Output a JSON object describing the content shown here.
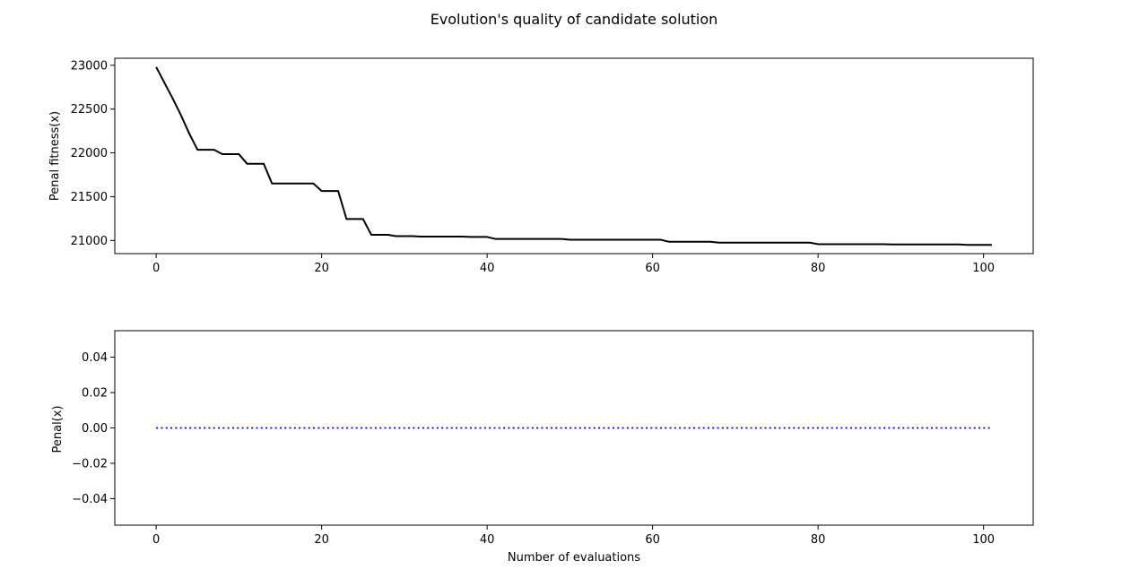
{
  "figure": {
    "title": "Evolution's quality of candidate solution"
  },
  "chart_data": [
    {
      "type": "line",
      "title": "",
      "xlabel": "",
      "ylabel": "Penal fitness(x)",
      "xlim": [
        -5,
        106
      ],
      "ylim": [
        20850,
        23080
      ],
      "xticks": [
        0,
        20,
        40,
        60,
        80,
        100
      ],
      "yticks": [
        21000,
        21500,
        22000,
        22500,
        23000
      ],
      "grid": false,
      "series": [
        {
          "color": "#000000",
          "linestyle": "solid",
          "x": [
            0,
            2,
            3,
            4,
            5,
            7,
            8,
            10,
            11,
            13,
            14,
            19,
            20,
            22,
            23,
            25,
            26,
            28,
            29,
            31,
            32,
            37,
            38,
            40,
            41,
            49,
            50,
            61,
            62,
            67,
            68,
            79,
            80,
            88,
            89,
            97,
            98,
            101
          ],
          "y": [
            22980,
            22620,
            22430,
            22220,
            22035,
            22035,
            21985,
            21985,
            21875,
            21875,
            21650,
            21650,
            21565,
            21565,
            21245,
            21245,
            21065,
            21065,
            21050,
            21050,
            21045,
            21045,
            21040,
            21040,
            21018,
            21018,
            21008,
            21008,
            20985,
            20985,
            20975,
            20975,
            20958,
            20958,
            20955,
            20955,
            20950,
            20950
          ]
        }
      ]
    },
    {
      "type": "line",
      "title": "",
      "xlabel": "Number of evaluations",
      "ylabel": "Penal(x)",
      "xlim": [
        -5,
        106
      ],
      "ylim": [
        -0.055,
        0.055
      ],
      "xticks": [
        0,
        20,
        40,
        60,
        80,
        100
      ],
      "yticks": [
        -0.04,
        -0.02,
        0.0,
        0.02,
        0.04
      ],
      "ytick_labels": [
        "−0.04",
        "−0.02",
        "0.00",
        "0.02",
        "0.04"
      ],
      "grid": false,
      "series": [
        {
          "color": "#0000ff",
          "linestyle": "dotted",
          "x": [
            0,
            101
          ],
          "y": [
            0,
            0
          ]
        }
      ]
    }
  ]
}
